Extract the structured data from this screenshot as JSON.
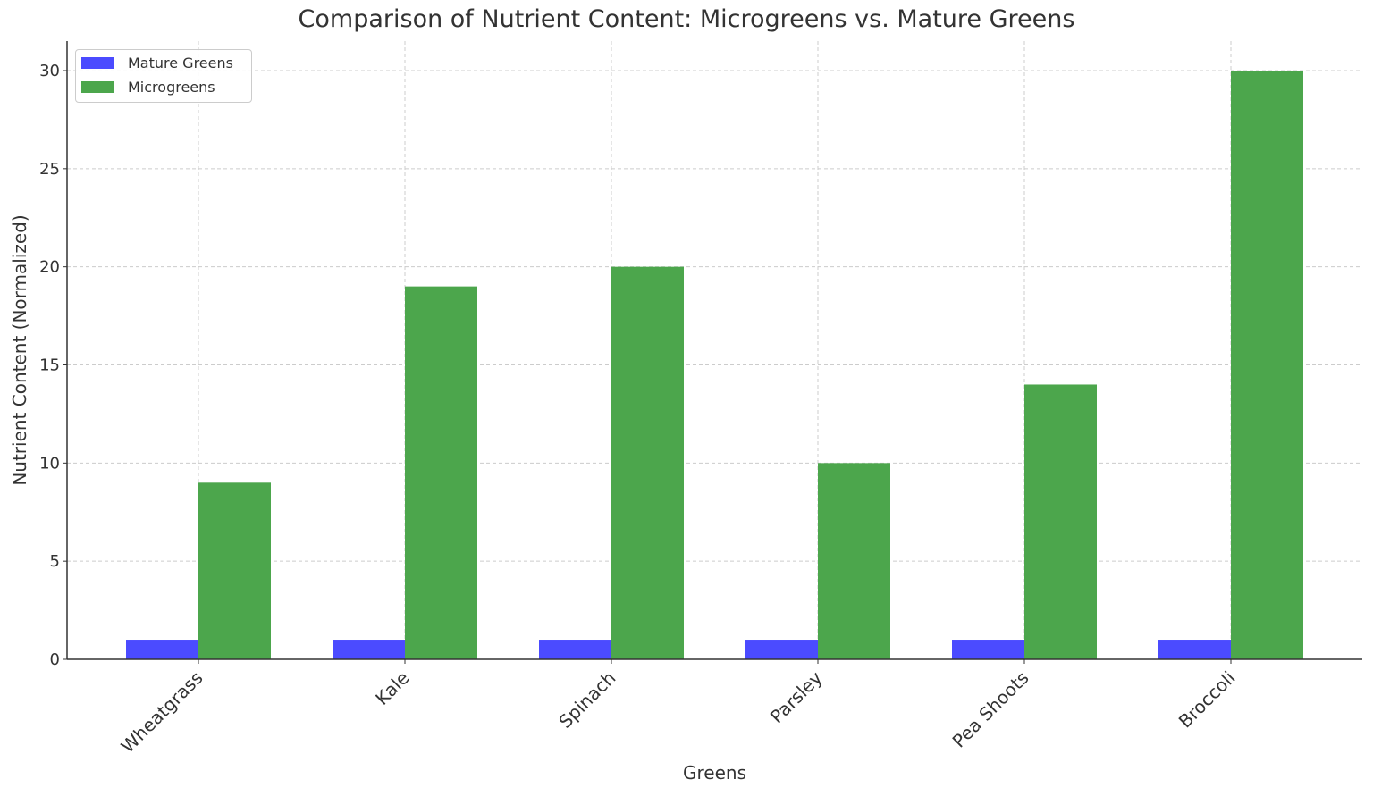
{
  "chart_data": {
    "type": "bar",
    "title": "Comparison of Nutrient Content: Microgreens vs. Mature Greens",
    "xlabel": "Greens",
    "ylabel": "Nutrient Content (Normalized)",
    "categories": [
      "Wheatgrass",
      "Kale",
      "Spinach",
      "Parsley",
      "Pea Shoots",
      "Broccoli"
    ],
    "series": [
      {
        "name": "Mature Greens",
        "color": "#4b4bff",
        "values": [
          1,
          1,
          1,
          1,
          1,
          1
        ]
      },
      {
        "name": "Microgreens",
        "color": "#4ca64c",
        "values": [
          9,
          19,
          20,
          10,
          14,
          30
        ]
      }
    ],
    "ylim": [
      0,
      31.5
    ],
    "yticks": [
      0,
      5,
      10,
      15,
      20,
      25,
      30
    ],
    "grid": true,
    "legend_position": "upper left",
    "xtick_rotation": 45
  }
}
